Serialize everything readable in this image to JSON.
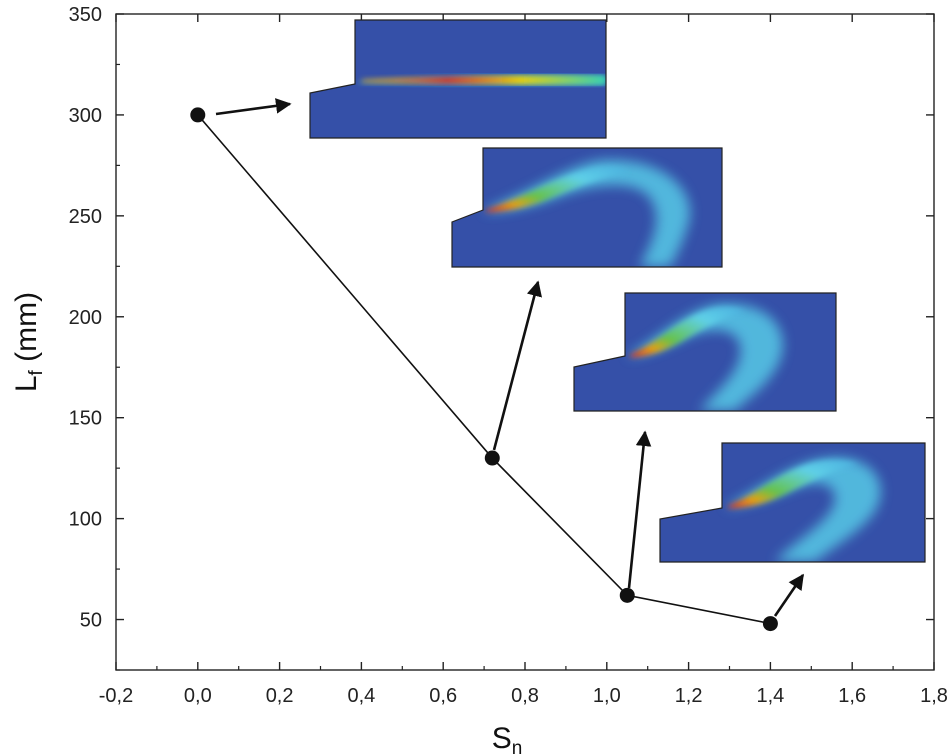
{
  "chart_data": {
    "type": "line",
    "title": "",
    "xlabel": {
      "main": "S",
      "sub": "n"
    },
    "ylabel": {
      "main": "L",
      "sub": "f",
      "rest": " (mm)"
    },
    "xlim": [
      -0.2,
      1.8
    ],
    "ylim": [
      25,
      350
    ],
    "x_ticks": [
      -0.2,
      0.0,
      0.2,
      0.4,
      0.6,
      0.8,
      1.0,
      1.2,
      1.4,
      1.6,
      1.8
    ],
    "x_tick_labels": [
      "-0,2",
      "0,0",
      "0,2",
      "0,4",
      "0,6",
      "0,8",
      "1,0",
      "1,2",
      "1,4",
      "1,6",
      "1,8"
    ],
    "y_ticks": [
      50,
      100,
      150,
      200,
      250,
      300,
      350
    ],
    "y_tick_labels": [
      "50",
      "100",
      "150",
      "200",
      "250",
      "300",
      "350"
    ],
    "series": [
      {
        "name": "Lf",
        "x": [
          0.0,
          0.72,
          1.05,
          1.4
        ],
        "y": [
          300,
          130,
          62,
          48
        ]
      }
    ],
    "insets": [
      {
        "point": 0,
        "swirl": 0.0
      },
      {
        "point": 1,
        "swirl": 0.72
      },
      {
        "point": 2,
        "swirl": 1.05
      },
      {
        "point": 3,
        "swirl": 1.4
      }
    ],
    "colors": {
      "axis": "#222222",
      "line": "#111111",
      "marker": "#111111",
      "field_bg": "#3550a8",
      "field_edge": "#2a3f8f"
    }
  }
}
